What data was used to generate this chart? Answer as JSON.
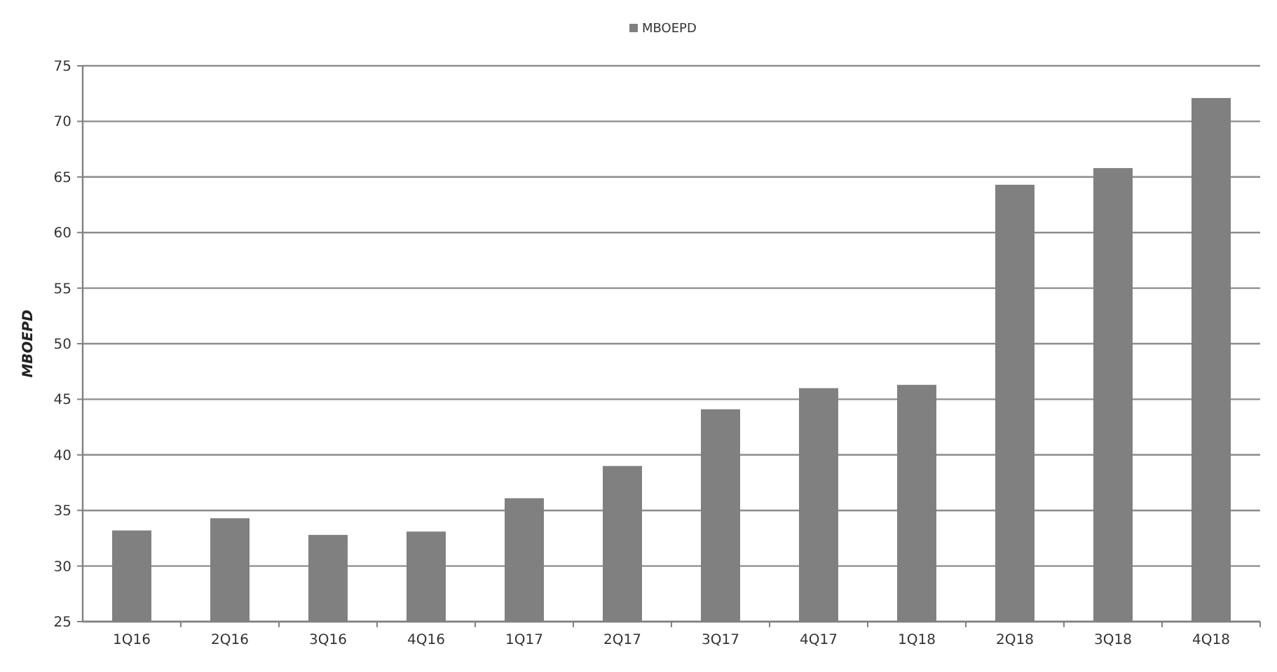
{
  "chart_data": {
    "type": "bar",
    "ylabel": "MBOEPD",
    "categories": [
      "1Q16",
      "2Q16",
      "3Q16",
      "4Q16",
      "1Q17",
      "2Q17",
      "3Q17",
      "4Q17",
      "1Q18",
      "2Q18",
      "3Q18",
      "4Q18"
    ],
    "series": [
      {
        "name": "MBOEPD",
        "color": "#808080",
        "values": [
          33.2,
          34.3,
          32.8,
          33.1,
          36.1,
          39.0,
          44.1,
          46.0,
          46.3,
          64.3,
          65.8,
          72.1
        ]
      }
    ],
    "ylim": [
      25,
      75
    ],
    "yticks": [
      25,
      30,
      35,
      40,
      45,
      50,
      55,
      60,
      65,
      70,
      75
    ],
    "grid": "y",
    "legend": "top"
  }
}
